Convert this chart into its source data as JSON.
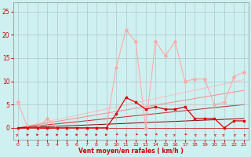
{
  "hours": [
    0,
    1,
    2,
    3,
    4,
    5,
    6,
    7,
    8,
    9,
    10,
    11,
    12,
    13,
    14,
    15,
    16,
    17,
    18,
    19,
    20,
    21,
    22,
    23
  ],
  "wind_gust": [
    5.5,
    0,
    0,
    2,
    0,
    0,
    0,
    0,
    0,
    0,
    13,
    21,
    18.5,
    0,
    18.5,
    15.5,
    18.5,
    10,
    10.5,
    10.5,
    5,
    5.5,
    11,
    12
  ],
  "wind_avg": [
    0,
    0,
    0,
    0,
    0,
    0,
    0,
    0,
    0,
    0,
    3,
    6.5,
    5.5,
    4,
    4.5,
    4,
    4,
    4.5,
    2,
    2,
    2,
    0,
    1.5,
    1.5
  ],
  "line_upper": [
    0,
    0.45,
    0.9,
    1.35,
    1.8,
    2.25,
    2.7,
    3.15,
    3.6,
    4.05,
    4.5,
    4.95,
    5.4,
    5.85,
    6.3,
    6.75,
    7.2,
    7.65,
    8.1,
    8.55,
    9.0,
    9.45,
    9.9,
    10.35
  ],
  "line_mid1": [
    0,
    0.35,
    0.7,
    1.05,
    1.4,
    1.75,
    2.1,
    2.45,
    2.8,
    3.15,
    3.5,
    3.85,
    4.2,
    4.55,
    4.9,
    5.25,
    5.6,
    5.95,
    6.3,
    6.65,
    7.0,
    7.35,
    7.7,
    8.05
  ],
  "line_mid2": [
    0,
    0.22,
    0.43,
    0.65,
    0.87,
    1.09,
    1.3,
    1.52,
    1.74,
    1.96,
    2.17,
    2.39,
    2.61,
    2.83,
    3.04,
    3.26,
    3.48,
    3.7,
    3.91,
    4.13,
    4.35,
    4.57,
    4.78,
    5.0
  ],
  "line_lower": [
    0,
    0.09,
    0.17,
    0.26,
    0.35,
    0.43,
    0.52,
    0.61,
    0.7,
    0.78,
    0.87,
    0.96,
    1.04,
    1.13,
    1.22,
    1.3,
    1.39,
    1.48,
    1.57,
    1.65,
    1.74,
    1.83,
    1.91,
    2.0
  ],
  "bg_color": "#cff0f0",
  "grid_color": "#aabbbb",
  "line_gust_color": "#ffaaaa",
  "line_avg_color": "#dd0000",
  "line_upper_color": "#ffbbbb",
  "line_mid1_color": "#ff8888",
  "line_mid2_color": "#cc2222",
  "line_lower_color": "#880000",
  "xlabel": "Vent moyen/en rafales ( km/h )",
  "xlabel_color": "#cc0000",
  "tick_color": "#cc0000",
  "yticks": [
    0,
    5,
    10,
    15,
    20,
    25
  ],
  "xticks": [
    0,
    1,
    2,
    3,
    4,
    5,
    6,
    7,
    8,
    9,
    10,
    11,
    12,
    13,
    14,
    15,
    16,
    17,
    18,
    19,
    20,
    21,
    22,
    23
  ],
  "ylim": [
    -2.5,
    27
  ],
  "xlim": [
    -0.5,
    23.5
  ]
}
